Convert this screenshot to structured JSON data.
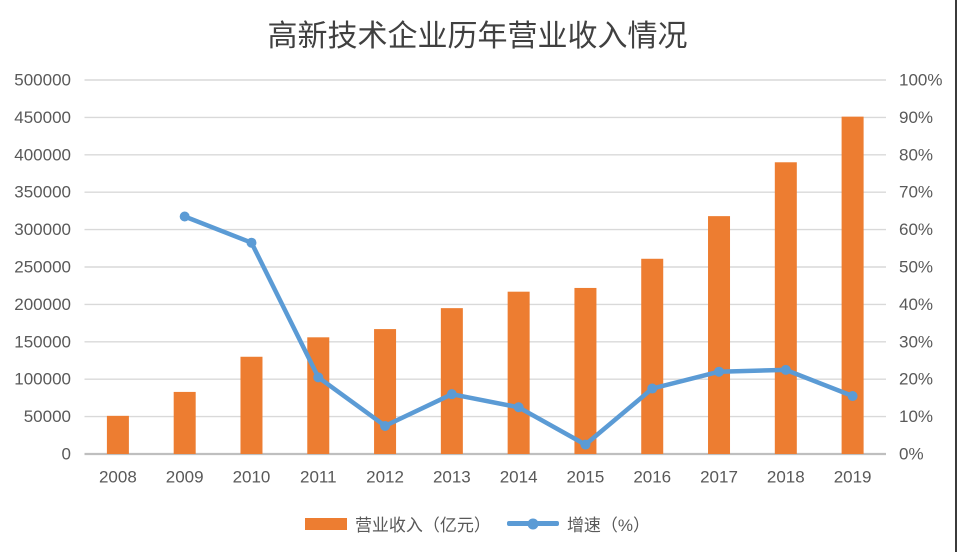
{
  "chart_data": {
    "type": "combo-bar-line",
    "title": "高新技术企业历年营业收入情况",
    "categories": [
      "2008",
      "2009",
      "2010",
      "2011",
      "2012",
      "2013",
      "2014",
      "2015",
      "2016",
      "2017",
      "2018",
      "2019"
    ],
    "series": [
      {
        "name": "营业收入（亿元）",
        "type": "bar",
        "axis": "left",
        "color": "#ED7D31",
        "values": [
          51000,
          83000,
          130000,
          156000,
          167000,
          195000,
          217000,
          222000,
          261000,
          318000,
          390000,
          451000
        ]
      },
      {
        "name": "增速（%）",
        "type": "line",
        "axis": "right",
        "color": "#5B9BD5",
        "values": [
          null,
          63.5,
          56.5,
          20.5,
          7.5,
          16,
          12.5,
          2.5,
          17.5,
          22,
          22.5,
          15.5
        ]
      }
    ],
    "left_axis": {
      "min": 0,
      "max": 500000,
      "step": 50000,
      "tick_labels": [
        "0",
        "50000",
        "100000",
        "150000",
        "200000",
        "250000",
        "300000",
        "350000",
        "400000",
        "450000",
        "500000"
      ]
    },
    "right_axis": {
      "min": 0,
      "max": 100,
      "step": 10,
      "tick_labels": [
        "0%",
        "10%",
        "20%",
        "30%",
        "40%",
        "50%",
        "60%",
        "70%",
        "80%",
        "90%",
        "100%"
      ]
    },
    "grid": true,
    "legend_position": "bottom"
  },
  "colors": {
    "background": "#FFFFFF",
    "bar": "#ED7D31",
    "line": "#5B9BD5",
    "gridline": "#D9D9D9",
    "axis_line": "#BFBFBF",
    "axis_text": "#595959",
    "title_text": "#404040",
    "right_border": "#3B3B3B"
  }
}
